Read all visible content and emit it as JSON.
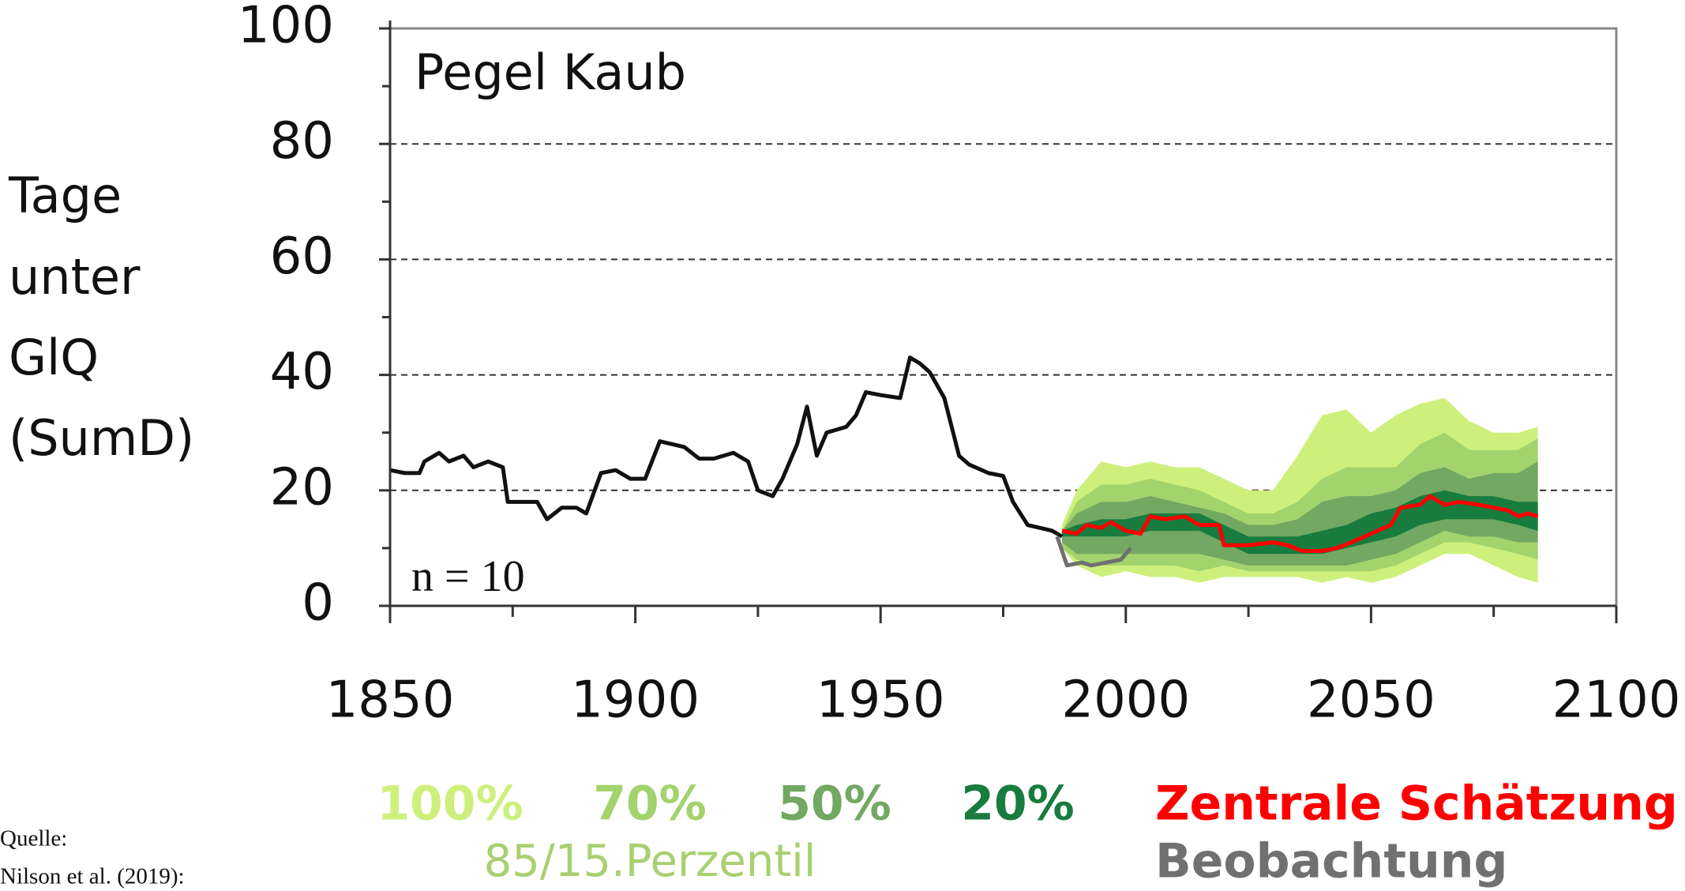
{
  "chart_data": {
    "type": "line",
    "title": "Pegel Kaub",
    "ylabel": [
      "Tage",
      "unter",
      "GlQ",
      "(SumD)"
    ],
    "annotation": "n = 10",
    "xlim": [
      1850,
      2100
    ],
    "xticks": [
      1850,
      1900,
      1950,
      2000,
      2050,
      2100
    ],
    "xminorticks": [
      1875,
      1925,
      1975,
      2025,
      2075
    ],
    "ylim": [
      0,
      100
    ],
    "yticks": [
      0,
      20,
      40,
      60,
      80,
      100
    ],
    "yminorticks": [
      10,
      30,
      50,
      70,
      90
    ],
    "grid": true,
    "band_x": [
      1987,
      1990,
      1995,
      2000,
      2005,
      2010,
      2015,
      2020,
      2025,
      2030,
      2035,
      2040,
      2045,
      2050,
      2055,
      2060,
      2065,
      2070,
      2075,
      2080,
      2084
    ],
    "bands": [
      {
        "name": "100%",
        "color": "#cdf07c",
        "upper": [
          14,
          20,
          25,
          24,
          25,
          24,
          24,
          22,
          20,
          20,
          26,
          33,
          34,
          30,
          33,
          35,
          36,
          32,
          30,
          30,
          31
        ],
        "lower": [
          10,
          7,
          5,
          6,
          5,
          5,
          4,
          5,
          5,
          5,
          5,
          4,
          5,
          4,
          5,
          7,
          9,
          9,
          7,
          5,
          4
        ]
      },
      {
        "name": "70%",
        "color": "#a3d36c",
        "upper": [
          13,
          18,
          21,
          21,
          22,
          21,
          20,
          18,
          16,
          16,
          18,
          22,
          24,
          24,
          24,
          28,
          30,
          27,
          27,
          27,
          29
        ],
        "lower": [
          10,
          8,
          7,
          7,
          7,
          7,
          6,
          7,
          6,
          6,
          6,
          6,
          6,
          6,
          7,
          9,
          11,
          11,
          10,
          9,
          8
        ]
      },
      {
        "name": "50%",
        "color": "#72a862",
        "upper": [
          13,
          16,
          18,
          18,
          19,
          18,
          17,
          16,
          14,
          14,
          15,
          18,
          19,
          19,
          20,
          23,
          24,
          22,
          23,
          23,
          25
        ],
        "lower": [
          11,
          9,
          9,
          9,
          9,
          9,
          9,
          8,
          7,
          7,
          7,
          7,
          7,
          8,
          9,
          11,
          13,
          12,
          12,
          11,
          11
        ]
      },
      {
        "name": "20%",
        "color": "#187c3e",
        "upper": [
          13,
          14,
          15,
          15,
          16,
          16,
          16,
          14,
          12,
          12,
          12,
          13,
          14,
          16,
          17,
          19,
          20,
          19,
          19,
          18,
          18
        ],
        "lower": [
          12,
          12,
          12,
          12,
          13,
          13,
          13,
          11,
          9,
          9,
          9,
          9,
          10,
          11,
          12,
          14,
          15,
          15,
          15,
          14,
          13
        ]
      }
    ],
    "percentile_note": "85/15.Perzentil",
    "percentile_note_color": "#a8d070",
    "series": [
      {
        "name": null,
        "color": "#111111",
        "x": [
          1850,
          1853,
          1856,
          1857,
          1860,
          1862,
          1865,
          1867,
          1870,
          1873,
          1874,
          1880,
          1882,
          1885,
          1888,
          1890,
          1893,
          1896,
          1899,
          1902,
          1905,
          1910,
          1913,
          1916,
          1920,
          1923,
          1925,
          1928,
          1930,
          1933,
          1935,
          1937,
          1939,
          1943,
          1945,
          1947,
          1950,
          1954,
          1956,
          1958,
          1960,
          1963,
          1966,
          1968,
          1972,
          1975,
          1977,
          1980,
          1985,
          1987
        ],
        "values": [
          23.5,
          23,
          23,
          25,
          26.5,
          25,
          26,
          24,
          25,
          24,
          18,
          18,
          15,
          17,
          17,
          16,
          23,
          23.5,
          22,
          22,
          28.5,
          27.5,
          25.5,
          25.5,
          26.5,
          25,
          20,
          19,
          22,
          28,
          34.5,
          26,
          30,
          31,
          33,
          37,
          36.5,
          36,
          43,
          42,
          40.5,
          36,
          26,
          24.5,
          23,
          22.5,
          18,
          14,
          13,
          12
        ]
      },
      {
        "name": "Beobachtung",
        "color": "#707070",
        "x": [
          1986,
          1988,
          1991,
          1993,
          1996,
          1999,
          2001
        ],
        "values": [
          12,
          7,
          7.5,
          7,
          7.5,
          8,
          10
        ]
      },
      {
        "name": "Zentrale Schätzung",
        "color": "#ff0000",
        "x": [
          1987,
          1990,
          1992,
          1995,
          1997,
          2000,
          2003,
          2005,
          2008,
          2012,
          2015,
          2019,
          2020,
          2025,
          2030,
          2033,
          2036,
          2040,
          2043,
          2046,
          2050,
          2054,
          2056,
          2060,
          2062,
          2065,
          2068,
          2072,
          2075,
          2078,
          2080,
          2082,
          2084
        ],
        "values": [
          13,
          12.5,
          14,
          13.5,
          14.5,
          13,
          12.5,
          15.5,
          15,
          15.5,
          14,
          14,
          10.5,
          10.5,
          11,
          10.5,
          9.5,
          9.5,
          10,
          11,
          12.5,
          14,
          17,
          17.5,
          19,
          17.5,
          18,
          17.5,
          17,
          16.5,
          15.5,
          16,
          15.5
        ]
      }
    ],
    "source": [
      "Quelle:",
      "Nilson et al. (2019):"
    ]
  }
}
